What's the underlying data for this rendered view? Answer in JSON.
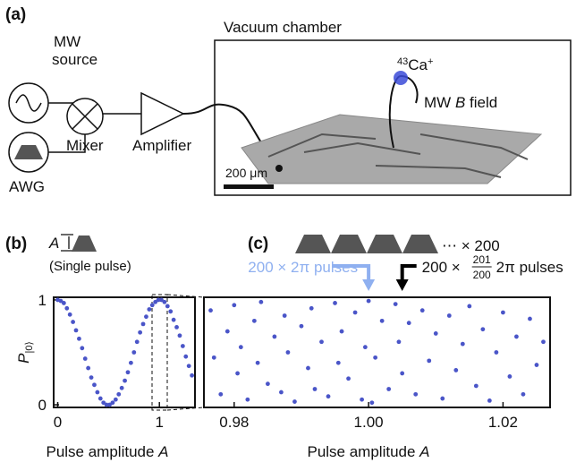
{
  "panel_a": {
    "label": "(a)",
    "source_lines": [
      "MW",
      "source"
    ],
    "mixer": "Mixer",
    "awg": "AWG",
    "amplifier": "Amplifier",
    "chamber_title": "Vacuum chamber",
    "ion_mass": "43",
    "ion_name": "Ca",
    "ion_charge": "+",
    "field_parts": [
      "MW ",
      "B",
      " field"
    ],
    "scale_bar": "200 μm"
  },
  "panel_b": {
    "label": "(b)",
    "pulse_var": "A",
    "caption": "(Single pulse)"
  },
  "panel_c": {
    "label": "(c)",
    "repeat": "⋯ × 200",
    "annotations": [
      {
        "text": "200 × 2π pulses",
        "x": 1.0,
        "color": "#8fb0f0"
      },
      {
        "prefix": "200 × ",
        "numerator": "201",
        "denominator": "200",
        "suffix": "2π pulses",
        "x": 1.005,
        "color": "#000000"
      }
    ]
  },
  "chart_data": [
    {
      "type": "scatter",
      "color": "#4a55c8",
      "xlabel": [
        "Pulse amplitude ",
        "A"
      ],
      "ylabel": [
        "P",
        "|0⟩"
      ],
      "xlim": [
        -0.04,
        1.35
      ],
      "ylim": [
        -0.025,
        1.025
      ],
      "xticks": [
        0,
        1
      ],
      "yticks": [
        0,
        1
      ],
      "x": [
        0,
        0.03,
        0.06,
        0.09,
        0.12,
        0.15,
        0.18,
        0.21,
        0.24,
        0.27,
        0.3,
        0.33,
        0.36,
        0.39,
        0.42,
        0.45,
        0.48,
        0.51,
        0.54,
        0.57,
        0.6,
        0.63,
        0.66,
        0.69,
        0.72,
        0.75,
        0.78,
        0.81,
        0.84,
        0.87,
        0.9,
        0.93,
        0.96,
        0.99,
        1.02,
        1.05,
        1.08,
        1.11,
        1.14,
        1.17,
        1.2,
        1.23,
        1.26,
        1.29,
        1.32
      ],
      "values": [
        1,
        0.99,
        0.97,
        0.92,
        0.86,
        0.79,
        0.71,
        0.63,
        0.54,
        0.44,
        0.35,
        0.26,
        0.19,
        0.12,
        0.06,
        0.02,
        0,
        0,
        0.02,
        0.05,
        0.1,
        0.16,
        0.23,
        0.31,
        0.4,
        0.5,
        0.6,
        0.69,
        0.77,
        0.84,
        0.91,
        0.95,
        0.98,
        1,
        1,
        0.98,
        0.94,
        0.89,
        0.81,
        0.74,
        0.66,
        0.56,
        0.46,
        0.37,
        0.28
      ]
    },
    {
      "type": "scatter",
      "color": "#4a55c8",
      "xlabel": [
        "Pulse amplitude ",
        "A"
      ],
      "xlim": [
        0.9755,
        1.027
      ],
      "ylim": [
        -0.025,
        1.025
      ],
      "xticks": [
        0.98,
        {
          "value": 1,
          "label": "1.00"
        },
        1.02
      ],
      "x": [
        0.9765,
        0.977,
        0.978,
        0.979,
        0.98,
        0.9805,
        0.981,
        0.982,
        0.983,
        0.9835,
        0.984,
        0.985,
        0.986,
        0.987,
        0.9875,
        0.988,
        0.989,
        0.99,
        0.991,
        0.9915,
        0.992,
        0.993,
        0.994,
        0.995,
        0.9955,
        0.996,
        0.997,
        0.998,
        0.999,
        0.9995,
        1.0,
        1.0005,
        1.001,
        1.002,
        1.003,
        1.004,
        1.0045,
        1.005,
        1.006,
        1.007,
        1.008,
        1.009,
        1.01,
        1.011,
        1.012,
        1.013,
        1.014,
        1.015,
        1.016,
        1.017,
        1.018,
        1.019,
        1.02,
        1.021,
        1.022,
        1.023,
        1.024,
        1.025,
        1.026
      ],
      "values": [
        0.9,
        0.45,
        0.1,
        0.7,
        0.95,
        0.3,
        0.55,
        0.05,
        0.8,
        0.4,
        0.98,
        0.2,
        0.65,
        0.12,
        0.85,
        0.5,
        0.03,
        0.75,
        0.35,
        0.92,
        0.15,
        0.6,
        0.08,
        0.97,
        0.4,
        0.7,
        0.25,
        0.88,
        0.05,
        0.55,
        0.99,
        0.02,
        0.45,
        0.8,
        0.15,
        0.96,
        0.6,
        0.3,
        0.78,
        0.1,
        0.9,
        0.42,
        0.68,
        0.06,
        0.85,
        0.33,
        0.58,
        0.94,
        0.18,
        0.72,
        0.04,
        0.5,
        0.88,
        0.27,
        0.65,
        0.1,
        0.82,
        0.38,
        0.6
      ]
    }
  ]
}
